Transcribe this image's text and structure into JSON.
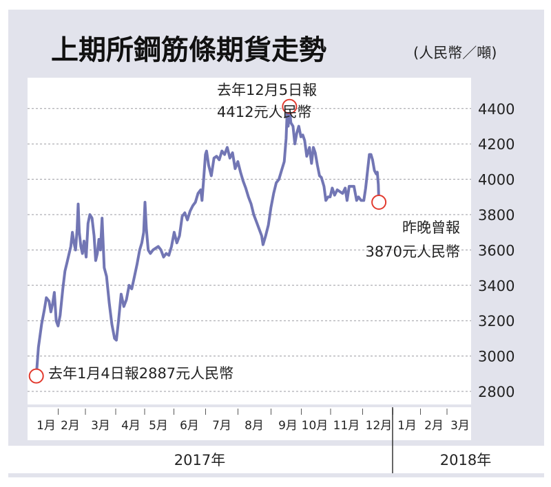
{
  "title": "上期所鋼筋條期貨走勢",
  "unit": "(人民幣／噸)",
  "colors": {
    "line": "#7276b4",
    "panel": "#e2e3ec",
    "marker": "#e23a2e",
    "grid": "#9a9aa0"
  },
  "chart_data": {
    "type": "line",
    "ylim": [
      2700,
      4550
    ],
    "yticks": [
      2800,
      3000,
      3200,
      3400,
      3600,
      3800,
      4000,
      4200,
      4400
    ],
    "ytick_labels": [
      "2800",
      "3000",
      "3200",
      "3400",
      "3600",
      "3800",
      "4000",
      "4200",
      "4400"
    ],
    "x_months": [
      "1月",
      "2月",
      "3月",
      "4月",
      "5月",
      "6月",
      "7月",
      "8月",
      "9月",
      "10月",
      "11月",
      "12月",
      "1月",
      "2月",
      "3月"
    ],
    "years": [
      "2017年",
      "2018年"
    ],
    "grid": true,
    "series": [
      {
        "values": [
          [
            0.2,
            2887
          ],
          [
            0.28,
            3050
          ],
          [
            0.4,
            3180
          ],
          [
            0.5,
            3260
          ],
          [
            0.58,
            3330
          ],
          [
            0.68,
            3310
          ],
          [
            0.75,
            3250
          ],
          [
            0.82,
            3300
          ],
          [
            0.88,
            3360
          ],
          [
            0.95,
            3200
          ],
          [
            1.02,
            3170
          ],
          [
            1.1,
            3230
          ],
          [
            1.2,
            3380
          ],
          [
            1.28,
            3480
          ],
          [
            1.36,
            3530
          ],
          [
            1.44,
            3580
          ],
          [
            1.5,
            3620
          ],
          [
            1.56,
            3700
          ],
          [
            1.62,
            3640
          ],
          [
            1.68,
            3600
          ],
          [
            1.74,
            3720
          ],
          [
            1.78,
            3860
          ],
          [
            1.82,
            3700
          ],
          [
            1.88,
            3620
          ],
          [
            1.94,
            3580
          ],
          [
            2.0,
            3650
          ],
          [
            2.08,
            3560
          ],
          [
            2.15,
            3750
          ],
          [
            2.22,
            3800
          ],
          [
            2.3,
            3780
          ],
          [
            2.38,
            3680
          ],
          [
            2.44,
            3540
          ],
          [
            2.5,
            3580
          ],
          [
            2.56,
            3660
          ],
          [
            2.62,
            3600
          ],
          [
            2.68,
            3780
          ],
          [
            2.76,
            3500
          ],
          [
            2.85,
            3450
          ],
          [
            2.95,
            3300
          ],
          [
            3.05,
            3180
          ],
          [
            3.15,
            3100
          ],
          [
            3.22,
            3090
          ],
          [
            3.3,
            3200
          ],
          [
            3.4,
            3350
          ],
          [
            3.5,
            3280
          ],
          [
            3.6,
            3320
          ],
          [
            3.7,
            3400
          ],
          [
            3.8,
            3380
          ],
          [
            3.9,
            3450
          ],
          [
            4.0,
            3520
          ],
          [
            4.1,
            3600
          ],
          [
            4.18,
            3640
          ],
          [
            4.25,
            3700
          ],
          [
            4.3,
            3870
          ],
          [
            4.35,
            3720
          ],
          [
            4.42,
            3600
          ],
          [
            4.5,
            3580
          ],
          [
            4.6,
            3600
          ],
          [
            4.7,
            3610
          ],
          [
            4.8,
            3620
          ],
          [
            4.9,
            3600
          ],
          [
            5.0,
            3560
          ],
          [
            5.1,
            3580
          ],
          [
            5.2,
            3570
          ],
          [
            5.3,
            3620
          ],
          [
            5.4,
            3700
          ],
          [
            5.5,
            3640
          ],
          [
            5.6,
            3680
          ],
          [
            5.7,
            3790
          ],
          [
            5.8,
            3810
          ],
          [
            5.9,
            3770
          ],
          [
            6.0,
            3820
          ],
          [
            6.1,
            3850
          ],
          [
            6.2,
            3870
          ],
          [
            6.3,
            3920
          ],
          [
            6.4,
            3940
          ],
          [
            6.45,
            3880
          ],
          [
            6.5,
            3980
          ],
          [
            6.58,
            4140
          ],
          [
            6.62,
            4160
          ],
          [
            6.7,
            4080
          ],
          [
            6.8,
            4020
          ],
          [
            6.9,
            4120
          ],
          [
            7.0,
            4130
          ],
          [
            7.1,
            4110
          ],
          [
            7.2,
            4160
          ],
          [
            7.3,
            4140
          ],
          [
            7.4,
            4180
          ],
          [
            7.5,
            4120
          ],
          [
            7.6,
            4150
          ],
          [
            7.7,
            4060
          ],
          [
            7.8,
            4100
          ],
          [
            7.9,
            4040
          ],
          [
            8.0,
            3990
          ],
          [
            8.1,
            3950
          ],
          [
            8.2,
            3900
          ],
          [
            8.3,
            3860
          ],
          [
            8.4,
            3800
          ],
          [
            8.5,
            3760
          ],
          [
            8.6,
            3720
          ],
          [
            8.7,
            3680
          ],
          [
            8.75,
            3630
          ],
          [
            8.85,
            3680
          ],
          [
            8.95,
            3740
          ],
          [
            9.05,
            3840
          ],
          [
            9.15,
            3920
          ],
          [
            9.25,
            3980
          ],
          [
            9.35,
            4000
          ],
          [
            9.45,
            4050
          ],
          [
            9.55,
            4100
          ],
          [
            9.62,
            4230
          ],
          [
            9.66,
            4380
          ],
          [
            9.7,
            4300
          ],
          [
            9.75,
            4400
          ],
          [
            9.8,
            4320
          ],
          [
            9.88,
            4300
          ],
          [
            9.95,
            4200
          ],
          [
            10.02,
            4260
          ],
          [
            10.1,
            4300
          ],
          [
            10.18,
            4240
          ],
          [
            10.25,
            4250
          ],
          [
            10.32,
            4220
          ],
          [
            10.4,
            4130
          ],
          [
            10.5,
            4180
          ],
          [
            10.58,
            4090
          ],
          [
            10.65,
            4180
          ],
          [
            10.72,
            4150
          ],
          [
            10.8,
            4080
          ],
          [
            10.88,
            4020
          ],
          [
            10.95,
            4010
          ],
          [
            11.05,
            3960
          ],
          [
            11.12,
            3880
          ],
          [
            11.2,
            3900
          ],
          [
            11.28,
            3900
          ],
          [
            11.36,
            3950
          ],
          [
            11.45,
            3910
          ],
          [
            11.55,
            3940
          ],
          [
            11.65,
            3930
          ],
          [
            11.75,
            3920
          ],
          [
            11.85,
            3950
          ],
          [
            11.92,
            3880
          ],
          [
            12.0,
            3960
          ],
          [
            12.08,
            3960
          ],
          [
            12.18,
            3960
          ],
          [
            12.28,
            3880
          ],
          [
            12.35,
            3900
          ],
          [
            12.45,
            3880
          ],
          [
            12.55,
            3880
          ],
          [
            12.62,
            3950
          ],
          [
            12.7,
            4060
          ],
          [
            12.76,
            4140
          ],
          [
            12.82,
            4140
          ],
          [
            12.88,
            4110
          ],
          [
            12.95,
            4050
          ],
          [
            13.02,
            4030
          ],
          [
            13.06,
            4040
          ],
          [
            13.1,
            3970
          ],
          [
            13.12,
            3870
          ]
        ]
      }
    ],
    "annotations": [
      {
        "name": "low-annotation",
        "x": 0.2,
        "y": 2887,
        "text": "去年1月4日報2887元人民幣"
      },
      {
        "name": "high-annotation",
        "x": 9.75,
        "y": 4412,
        "lines": [
          "去年12月5日報",
          "4412元人民幣"
        ]
      },
      {
        "name": "last-annotation",
        "x": 13.12,
        "y": 3870,
        "lines": [
          "昨晚曾報",
          "3870元人民幣"
        ]
      }
    ]
  }
}
